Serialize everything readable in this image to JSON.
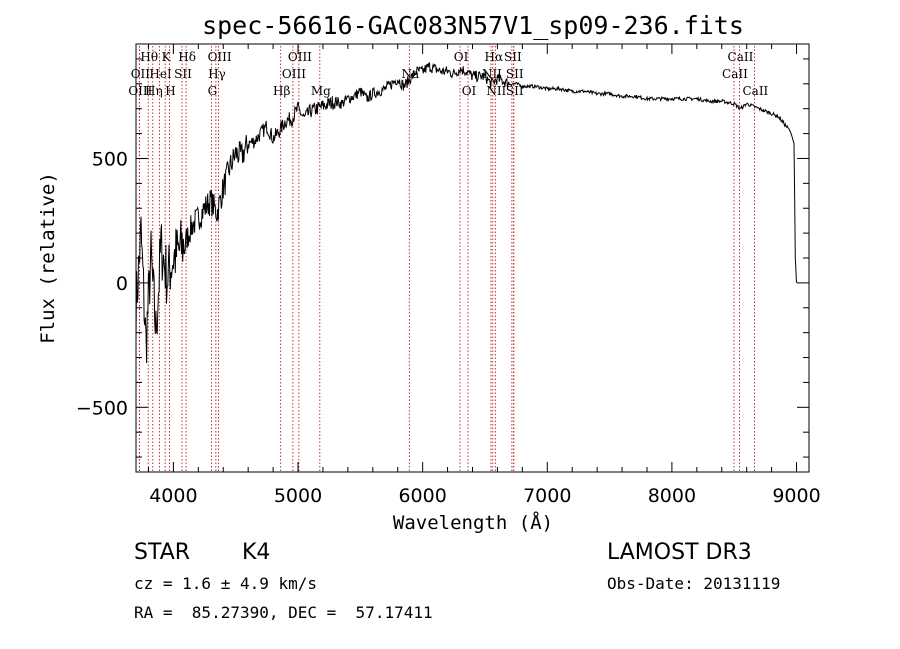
{
  "chart_data": {
    "type": "line",
    "title": "spec-56616-GAC083N57V1_sp09-236.fits",
    "xlabel": "Wavelength (Å)",
    "ylabel": "Flux (relative)",
    "xlim": [
      3700,
      9100
    ],
    "ylim": [
      -760,
      960
    ],
    "xticks": [
      4000,
      5000,
      6000,
      7000,
      8000,
      9000
    ],
    "xtick_labels": [
      "4000",
      "5000",
      "6000",
      "7000",
      "8000",
      "9000"
    ],
    "yticks": [
      -500,
      0,
      500
    ],
    "ytick_labels": [
      "−500",
      "0",
      "500"
    ],
    "grid": false,
    "series": [
      {
        "name": "spectrum",
        "x": [
          3700,
          3740,
          3780,
          3820,
          3860,
          3900,
          3950,
          4000,
          4050,
          4100,
          4150,
          4200,
          4250,
          4300,
          4350,
          4400,
          4450,
          4500,
          4550,
          4600,
          4650,
          4700,
          4750,
          4800,
          4850,
          4900,
          4950,
          5000,
          5050,
          5100,
          5150,
          5200,
          5250,
          5300,
          5350,
          5400,
          5450,
          5500,
          5550,
          5600,
          5650,
          5700,
          5750,
          5800,
          5850,
          5900,
          5950,
          6000,
          6050,
          6100,
          6150,
          6200,
          6250,
          6300,
          6350,
          6400,
          6450,
          6500,
          6550,
          6600,
          6650,
          6700,
          6750,
          6800,
          6900,
          7000,
          7100,
          7200,
          7300,
          7400,
          7500,
          7600,
          7700,
          7800,
          7900,
          8000,
          8100,
          8200,
          8300,
          8400,
          8500,
          8550,
          8600,
          8650,
          8700,
          8750,
          8800,
          8850,
          8900,
          8950,
          8980,
          8990,
          9000
        ],
        "y": [
          -100,
          200,
          -250,
          100,
          -200,
          150,
          20,
          100,
          130,
          170,
          230,
          260,
          300,
          330,
          280,
          380,
          460,
          520,
          510,
          560,
          570,
          600,
          630,
          580,
          610,
          650,
          660,
          700,
          660,
          690,
          700,
          710,
          720,
          730,
          720,
          740,
          750,
          770,
          740,
          760,
          770,
          780,
          800,
          820,
          790,
          820,
          850,
          850,
          870,
          860,
          850,
          850,
          840,
          860,
          850,
          830,
          830,
          830,
          800,
          820,
          810,
          800,
          800,
          790,
          790,
          780,
          780,
          770,
          770,
          760,
          760,
          750,
          750,
          740,
          740,
          740,
          740,
          740,
          730,
          730,
          720,
          700,
          720,
          710,
          700,
          690,
          680,
          670,
          640,
          610,
          560,
          100,
          0
        ]
      }
    ],
    "spectral_lines": [
      {
        "name": "Hθ",
        "wl": 3798,
        "row": 1
      },
      {
        "name": "OII",
        "wl": 3727,
        "row": 2
      },
      {
        "name": "OIII",
        "wl": 3727,
        "row": 3
      },
      {
        "name": "K",
        "wl": 3934,
        "row": 1
      },
      {
        "name": "HeI",
        "wl": 3889,
        "row": 2
      },
      {
        "name": "Hη",
        "wl": 3835,
        "row": 3
      },
      {
        "name": "Hδ",
        "wl": 4102,
        "row": 1
      },
      {
        "name": "SII",
        "wl": 4069,
        "row": 2
      },
      {
        "name": "H",
        "wl": 3969,
        "row": 3
      },
      {
        "name": "OIII",
        "wl": 4363,
        "row": 1
      },
      {
        "name": "Hγ",
        "wl": 4341,
        "row": 2
      },
      {
        "name": "G",
        "wl": 4305,
        "row": 3
      },
      {
        "name": "OIII",
        "wl": 5007,
        "row": 1
      },
      {
        "name": "OIII",
        "wl": 4959,
        "row": 2
      },
      {
        "name": "Hβ",
        "wl": 4861,
        "row": 3
      },
      {
        "name": "Mg",
        "wl": 5175,
        "row": 3
      },
      {
        "name": "Na",
        "wl": 5893,
        "row": 2
      },
      {
        "name": "OI",
        "wl": 6300,
        "row": 1
      },
      {
        "name": "OI",
        "wl": 6364,
        "row": 3
      },
      {
        "name": "Hα",
        "wl": 6563,
        "row": 1
      },
      {
        "name": "NII",
        "wl": 6548,
        "row": 2
      },
      {
        "name": "NII",
        "wl": 6583,
        "row": 3
      },
      {
        "name": "SII",
        "wl": 6716,
        "row": 1
      },
      {
        "name": "SII",
        "wl": 6731,
        "row": 2
      },
      {
        "name": "SII",
        "wl": 6731,
        "row": 3
      },
      {
        "name": "CaII",
        "wl": 8542,
        "row": 1
      },
      {
        "name": "CaII",
        "wl": 8498,
        "row": 2
      },
      {
        "name": "CaII",
        "wl": 8662,
        "row": 3
      }
    ],
    "colors": {
      "spectrum": "#000000",
      "lines": "#b30000"
    }
  },
  "info": {
    "object_class": "STAR",
    "subclass": "K4",
    "survey": "LAMOST DR3",
    "cz": "cz = 1.6 ± 4.9 km/s",
    "obs_date": "Obs-Date: 20131119",
    "coords": "RA =  85.27390, DEC =  57.17411"
  }
}
